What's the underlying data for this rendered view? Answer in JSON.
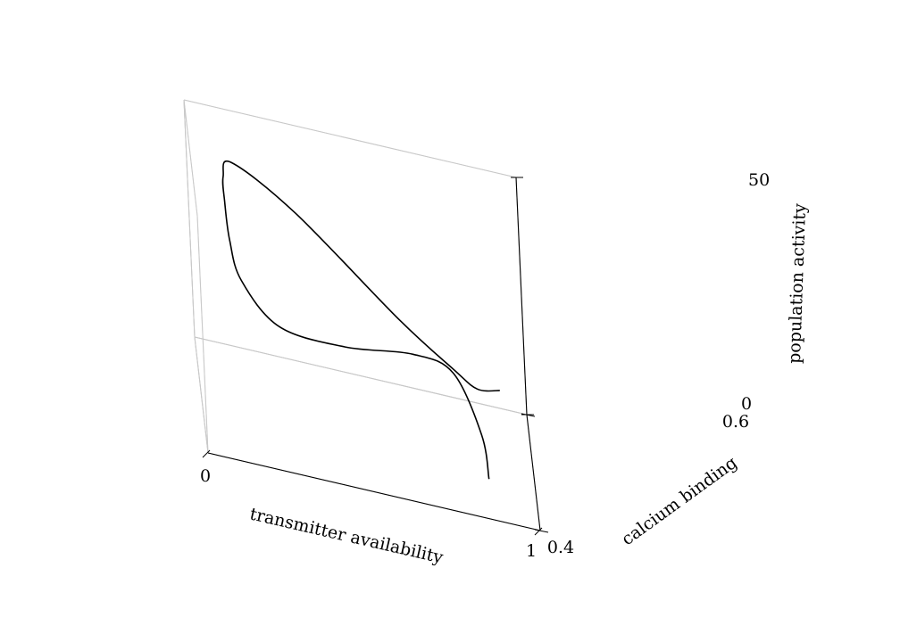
{
  "chart_data": {
    "type": "line3d",
    "title": "",
    "axes": {
      "x": {
        "label": "transmitter availability",
        "range": [
          0,
          1
        ],
        "ticks": [
          0,
          1
        ],
        "tick_labels": [
          "0",
          "1"
        ]
      },
      "y": {
        "label": "calcium binding",
        "range": [
          0.4,
          0.6
        ],
        "ticks": [
          0.4,
          0.6
        ],
        "tick_labels": [
          "0.4",
          "0.6"
        ]
      },
      "z": {
        "label": "population activity",
        "range": [
          0,
          50
        ],
        "ticks": [
          0,
          50
        ],
        "tick_labels": [
          "0",
          "50"
        ]
      }
    },
    "grid": true,
    "pane_color": "#ffffff",
    "line_color": "#000000",
    "series": [
      {
        "points": [
          [
            0.86,
            0.47,
            0
          ],
          [
            0.85,
            0.52,
            3
          ],
          [
            0.78,
            0.585,
            7
          ],
          [
            0.66,
            0.585,
            9
          ],
          [
            0.45,
            0.545,
            12
          ],
          [
            0.25,
            0.52,
            16
          ],
          [
            0.14,
            0.52,
            24
          ],
          [
            0.11,
            0.52,
            32
          ],
          [
            0.1,
            0.52,
            40
          ],
          [
            0.1,
            0.53,
            44
          ],
          [
            0.13,
            0.55,
            45
          ],
          [
            0.32,
            0.57,
            35
          ],
          [
            0.62,
            0.575,
            17
          ],
          [
            0.78,
            0.575,
            9
          ],
          [
            0.85,
            0.575,
            6
          ],
          [
            0.92,
            0.59,
            5
          ]
        ]
      }
    ]
  }
}
